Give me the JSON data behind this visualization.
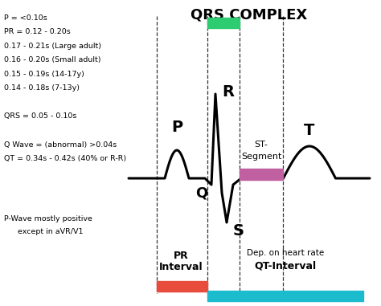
{
  "title": "QRS COMPLEX",
  "background_color": "#ffffff",
  "left_annotations": [
    "P = <0.10s",
    "PR = 0.12 - 0.20s",
    "0.17 - 0.21s (Large adult)",
    "0.16 - 0.20s (Small adult)",
    "0.15 - 0.19s (14-17y)",
    "0.14 - 0.18s (7-13y)",
    "",
    "QRS = 0.05 - 0.10s",
    "",
    "Q Wave = (abnormal) >0.04s",
    "QT = 0.34s - 0.42s (40% or R-R)"
  ],
  "bottom_left_annotation_line1": "P-Wave mostly positive",
  "bottom_left_annotation_line2": "except in aVR/V1",
  "figsize": [
    4.74,
    3.81
  ],
  "dpi": 100,
  "green_color": "#2ecc71",
  "red_color": "#e74c3c",
  "teal_color": "#1abccd",
  "magenta_color": "#c060a0"
}
